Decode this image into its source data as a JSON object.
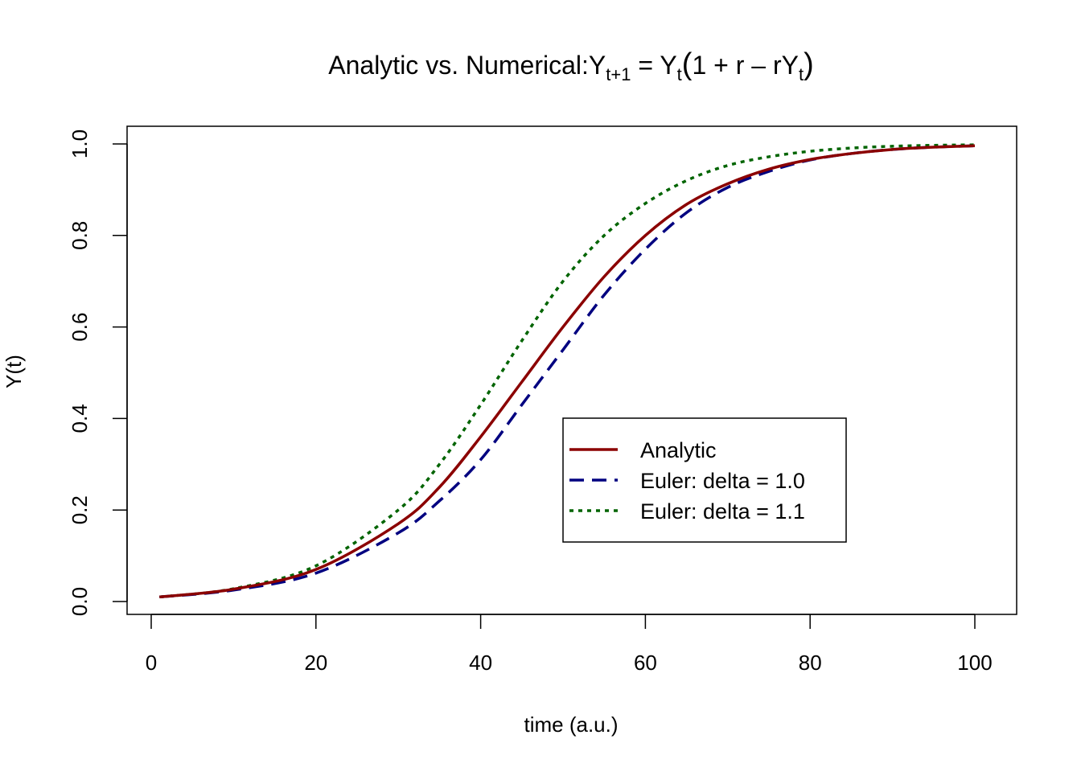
{
  "chart_data": {
    "type": "line",
    "title": {
      "prefix": "Analytic vs. Numerical:",
      "Y": "Y",
      "sub_t1": "t+1",
      "equals": " = ",
      "sub_t": "t",
      "open_paren": "(",
      "one_plus_r": "1 + r – rY",
      "close_paren": ")"
    },
    "xlabel": "time (a.u.)",
    "ylabel": "Y(t)",
    "xlim": [
      1,
      100
    ],
    "ylim": [
      0.01,
      1.0
    ],
    "xticks": [
      0,
      20,
      40,
      60,
      80,
      100
    ],
    "xtick_labels": [
      "0",
      "20",
      "40",
      "60",
      "80",
      "100"
    ],
    "yticks": [
      0.0,
      0.2,
      0.4,
      0.6,
      0.8,
      1.0
    ],
    "ytick_labels": [
      "0.0",
      "0.2",
      "0.4",
      "0.6",
      "0.8",
      "1.0"
    ],
    "grid": false,
    "legend_position": "center-right",
    "series": [
      {
        "name": "Analytic",
        "color": "#8B0000",
        "style": "solid",
        "x": [
          1,
          10,
          20,
          30,
          35,
          40,
          45,
          50,
          55,
          60,
          65,
          70,
          75,
          80,
          85,
          90,
          95,
          100
        ],
        "y": [
          0.01,
          0.027,
          0.07,
          0.17,
          0.25,
          0.36,
          0.48,
          0.6,
          0.71,
          0.8,
          0.868,
          0.913,
          0.945,
          0.966,
          0.979,
          0.988,
          0.993,
          0.996
        ]
      },
      {
        "name": "Euler: delta = 1.0",
        "color": "#000080",
        "style": "dashed",
        "x": [
          1,
          10,
          20,
          30,
          35,
          40,
          45,
          50,
          55,
          60,
          65,
          70,
          75,
          80,
          85,
          90,
          95,
          100
        ],
        "y": [
          0.01,
          0.025,
          0.062,
          0.15,
          0.22,
          0.31,
          0.43,
          0.55,
          0.67,
          0.77,
          0.85,
          0.905,
          0.94,
          0.965,
          0.979,
          0.988,
          0.993,
          0.996
        ]
      },
      {
        "name": "Euler: delta = 1.1",
        "color": "#006400",
        "style": "dotted",
        "x": [
          1,
          10,
          20,
          30,
          35,
          40,
          45,
          50,
          55,
          60,
          65,
          70,
          75,
          80,
          85,
          90,
          95,
          100
        ],
        "y": [
          0.01,
          0.028,
          0.078,
          0.2,
          0.3,
          0.43,
          0.57,
          0.7,
          0.8,
          0.87,
          0.92,
          0.953,
          0.972,
          0.984,
          0.991,
          0.995,
          0.997,
          0.998
        ]
      }
    ]
  }
}
